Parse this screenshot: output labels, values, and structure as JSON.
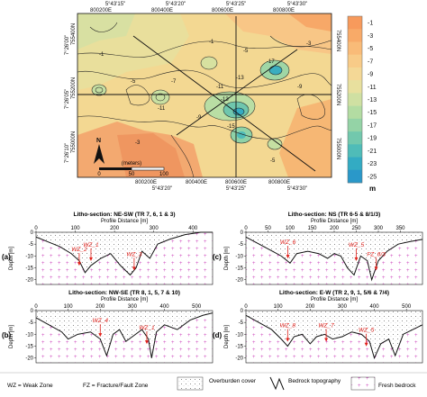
{
  "map": {
    "top_ticks": [
      "5°43'15\"",
      "5°43'20\"",
      "5°43'25\"",
      "5°43'30\""
    ],
    "top_eastings": [
      "800200E",
      "800400E",
      "800600E",
      "800800E"
    ],
    "bottom_eastings": [
      "800200E",
      "800400E",
      "800600E",
      "800800E"
    ],
    "bottom_ticks": [
      "5°43'20\"",
      "5°43'25\"",
      "5°43'30\""
    ],
    "left_northings": [
      "755400N",
      "755200N",
      "755000N"
    ],
    "left_ticks": [
      "7°26'00\"",
      "7°26'05\"",
      "7°26'10\""
    ],
    "right_northings": [
      "755400N",
      "755200N",
      "755000N"
    ],
    "contour_labels": [
      "-1",
      "-1",
      "-3",
      "-5",
      "-5",
      "-7",
      "-9",
      "-9",
      "-11",
      "-11",
      "-13",
      "-13",
      "-15",
      "-17",
      "-3",
      "-5"
    ],
    "scale_ticks": [
      "0",
      "50",
      "100"
    ],
    "scale_unit": "(meters)",
    "north_label": "N",
    "colorbar": {
      "values": [
        "-1",
        "-3",
        "-5",
        "-7",
        "-9",
        "-11",
        "-13",
        "-15",
        "-17",
        "-19",
        "-21",
        "-23",
        "-25"
      ],
      "unit": "m",
      "colors": [
        "#f79a5c",
        "#f8aa68",
        "#f9bb78",
        "#f8cb88",
        "#f4d896",
        "#e8e09e",
        "#cfe0a2",
        "#b3dca2",
        "#94d3a6",
        "#72c8ad",
        "#4fbcb8",
        "#33abc3",
        "#2a98c9"
      ]
    }
  },
  "sections": [
    {
      "panel": "(a)",
      "title": "Litho-section: NE-SW (TR 7, 6, 1 & 3)",
      "xlabel": "Profile Distance [m]",
      "ylabel": "Depth [m]",
      "xticks": [
        "0",
        "100",
        "200",
        "300",
        "400"
      ],
      "yticks": [
        "0",
        "-5",
        "-10",
        "-15",
        "-20"
      ],
      "zones": [
        "WZ_2",
        "WZ_1",
        "WZ_3"
      ]
    },
    {
      "panel": "(c)",
      "title": "Litho-section: NS (TR 6-5 & 8/1/3)",
      "xlabel": "Profile Distance [m]",
      "ylabel": "Depth [m]",
      "xticks": [
        "0",
        "50",
        "100",
        "150",
        "200",
        "250",
        "300",
        "350"
      ],
      "yticks": [
        "0",
        "-5",
        "-10",
        "-15",
        "-20"
      ],
      "zones": [
        "WZ_6",
        "WZ_5",
        "FZ_6/3"
      ]
    },
    {
      "panel": "(b)",
      "title": "Litho-section: NW-SE (TR 8, 1, 5, 7 & 10)",
      "xlabel": "Profile Distance [m]",
      "ylabel": "Depth [m]",
      "xticks": [
        "0",
        "100",
        "200",
        "300",
        "400",
        "500"
      ],
      "yticks": [
        "0",
        "-5",
        "-10",
        "-15",
        "-20"
      ],
      "zones": [
        "WZ_4",
        "WZ_1"
      ]
    },
    {
      "panel": "(d)",
      "title": "Litho-section: E-W (TR 2, 9, 1, 5/6 & 7/4)",
      "xlabel": "Profile Distance [m]",
      "ylabel": "Depth [m]",
      "xticks": [
        "0",
        "100",
        "200",
        "300",
        "400",
        "500"
      ],
      "yticks": [
        "0",
        "-5",
        "-10",
        "-15",
        "-20"
      ],
      "zones": [
        "WZ_8",
        "WZ_7",
        "WZ_5"
      ]
    }
  ],
  "legend": {
    "wz": "WZ = Weak Zone",
    "fz": "FZ = Fracture/Fault Zone",
    "overburden": "Overburden cover",
    "bedrock_topo": "Bedrock topography",
    "fresh_bedrock": "Fresh bedrock"
  }
}
